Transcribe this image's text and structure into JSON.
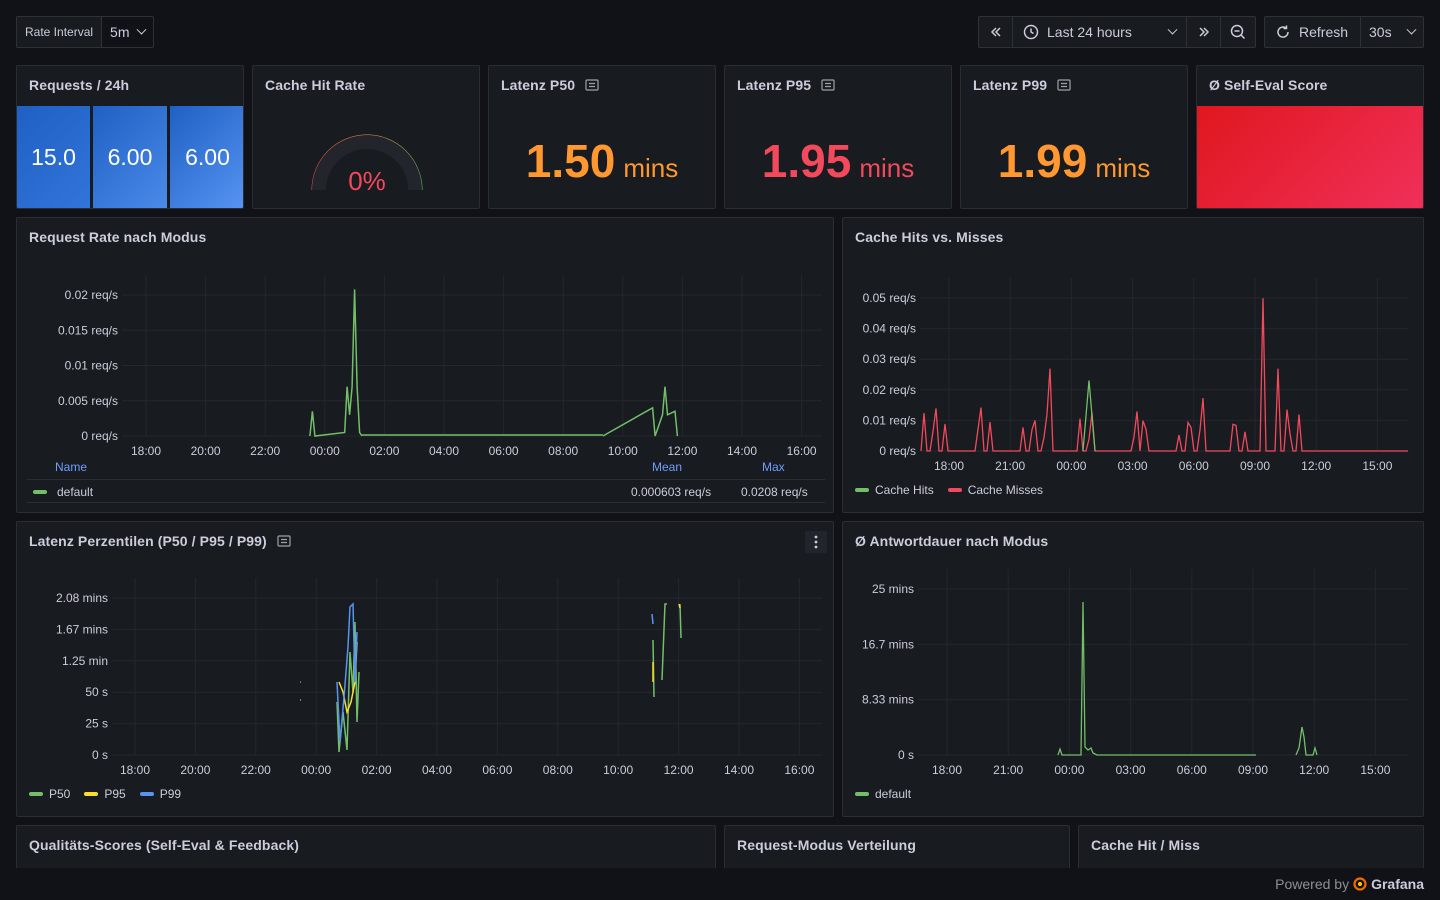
{
  "variables": {
    "rate_interval_label": "Rate Interval",
    "rate_interval_value": "5m"
  },
  "time_range": {
    "label": "Last 24 hours"
  },
  "refresh": {
    "label": "Refresh",
    "interval": "30s"
  },
  "panels": {
    "requests": {
      "title": "Requests / 24h",
      "values": [
        "15.0",
        "6.00",
        "6.00"
      ]
    },
    "cache_hit_rate": {
      "title": "Cache Hit Rate",
      "value": "0%",
      "gauge_fraction": 0
    },
    "p50": {
      "title": "Latenz P50",
      "value": "1.50",
      "unit": "mins"
    },
    "p95": {
      "title": "Latenz P95",
      "value": "1.95",
      "unit": "mins"
    },
    "p99": {
      "title": "Latenz P99",
      "value": "1.99",
      "unit": "mins"
    },
    "self_eval": {
      "title": "Ø Self-Eval Score"
    },
    "request_rate": {
      "title": "Request Rate nach Modus",
      "legend_headers": {
        "name": "Name",
        "mean": "Mean",
        "max": "Max"
      },
      "legend_rows": [
        {
          "name": "default",
          "mean": "0.000603 req/s",
          "max": "0.0208 req/s"
        }
      ]
    },
    "cache_hits": {
      "title": "Cache Hits vs. Misses"
    },
    "latency_pct": {
      "title": "Latenz Perzentilen (P50 / P95 / P99)"
    },
    "avg_duration": {
      "title": "Ø Antwortdauer nach Modus"
    },
    "quality": {
      "title": "Qualitäts-Scores (Self-Eval & Feedback)"
    },
    "mode_dist": {
      "title": "Request-Modus Verteilung"
    },
    "cache_pie": {
      "title": "Cache Hit / Miss"
    }
  },
  "footer": {
    "powered_by": "Powered by",
    "brand": "Grafana"
  },
  "colors": {
    "green": "#73bf69",
    "red": "#f2495c",
    "orange": "#ff9830",
    "yellow": "#fade2a",
    "blue": "#5794f2"
  },
  "chart_data": [
    {
      "type": "line",
      "title": "Request Rate nach Modus",
      "x": [
        "18:00",
        "20:00",
        "22:00",
        "00:00",
        "02:00",
        "04:00",
        "06:00",
        "08:00",
        "10:00",
        "12:00",
        "14:00",
        "16:00"
      ],
      "y_ticks": [
        "0 req/s",
        "0.005 req/s",
        "0.01 req/s",
        "0.015 req/s",
        "0.02 req/s"
      ],
      "ylim": [
        0,
        0.02
      ],
      "series": [
        {
          "name": "default",
          "color": "#73bf69",
          "points": [
            [
              "23:30",
              0
            ],
            [
              "23:35",
              0.0035
            ],
            [
              "23:40",
              0
            ],
            [
              "00:40",
              0.0005
            ],
            [
              "00:45",
              0.007
            ],
            [
              "00:50",
              0.003
            ],
            [
              "00:55",
              0.007
            ],
            [
              "01:00",
              0.0208
            ],
            [
              "01:05",
              0.007
            ],
            [
              "01:10",
              0.0005
            ],
            [
              "01:15",
              0
            ],
            [
              "09:20",
              0
            ],
            [
              "11:00",
              0.004
            ],
            [
              "11:05",
              0
            ],
            [
              "11:20",
              0.003
            ],
            [
              "11:25",
              0.007
            ],
            [
              "11:30",
              0.003
            ],
            [
              "11:45",
              0.0035
            ],
            [
              "11:50",
              0
            ]
          ]
        }
      ]
    },
    {
      "type": "line",
      "title": "Cache Hits vs. Misses",
      "x": [
        "18:00",
        "21:00",
        "00:00",
        "03:00",
        "06:00",
        "09:00",
        "12:00",
        "15:00"
      ],
      "y_ticks": [
        "0 req/s",
        "0.01 req/s",
        "0.02 req/s",
        "0.03 req/s",
        "0.04 req/s",
        "0.05 req/s"
      ],
      "ylim": [
        0,
        0.05
      ],
      "series": [
        {
          "name": "Cache Hits",
          "color": "#73bf69"
        },
        {
          "name": "Cache Misses",
          "color": "#f2495c"
        }
      ]
    },
    {
      "type": "line",
      "title": "Latenz Perzentilen (P50 / P95 / P99)",
      "x": [
        "18:00",
        "20:00",
        "22:00",
        "00:00",
        "02:00",
        "04:00",
        "06:00",
        "08:00",
        "10:00",
        "12:00",
        "14:00",
        "16:00"
      ],
      "y_ticks": [
        "0 s",
        "25 s",
        "50 s",
        "1.25 min",
        "1.67 mins",
        "2.08 mins"
      ],
      "series": [
        {
          "name": "P50",
          "color": "#73bf69"
        },
        {
          "name": "P95",
          "color": "#fade2a"
        },
        {
          "name": "P99",
          "color": "#5794f2"
        }
      ]
    },
    {
      "type": "line",
      "title": "Ø Antwortdauer nach Modus",
      "x": [
        "18:00",
        "21:00",
        "00:00",
        "03:00",
        "06:00",
        "09:00",
        "12:00",
        "15:00"
      ],
      "y_ticks": [
        "0 s",
        "8.33 mins",
        "16.7 mins",
        "25 mins"
      ],
      "ylim": [
        0,
        25
      ],
      "series": [
        {
          "name": "default",
          "color": "#73bf69"
        }
      ]
    }
  ]
}
